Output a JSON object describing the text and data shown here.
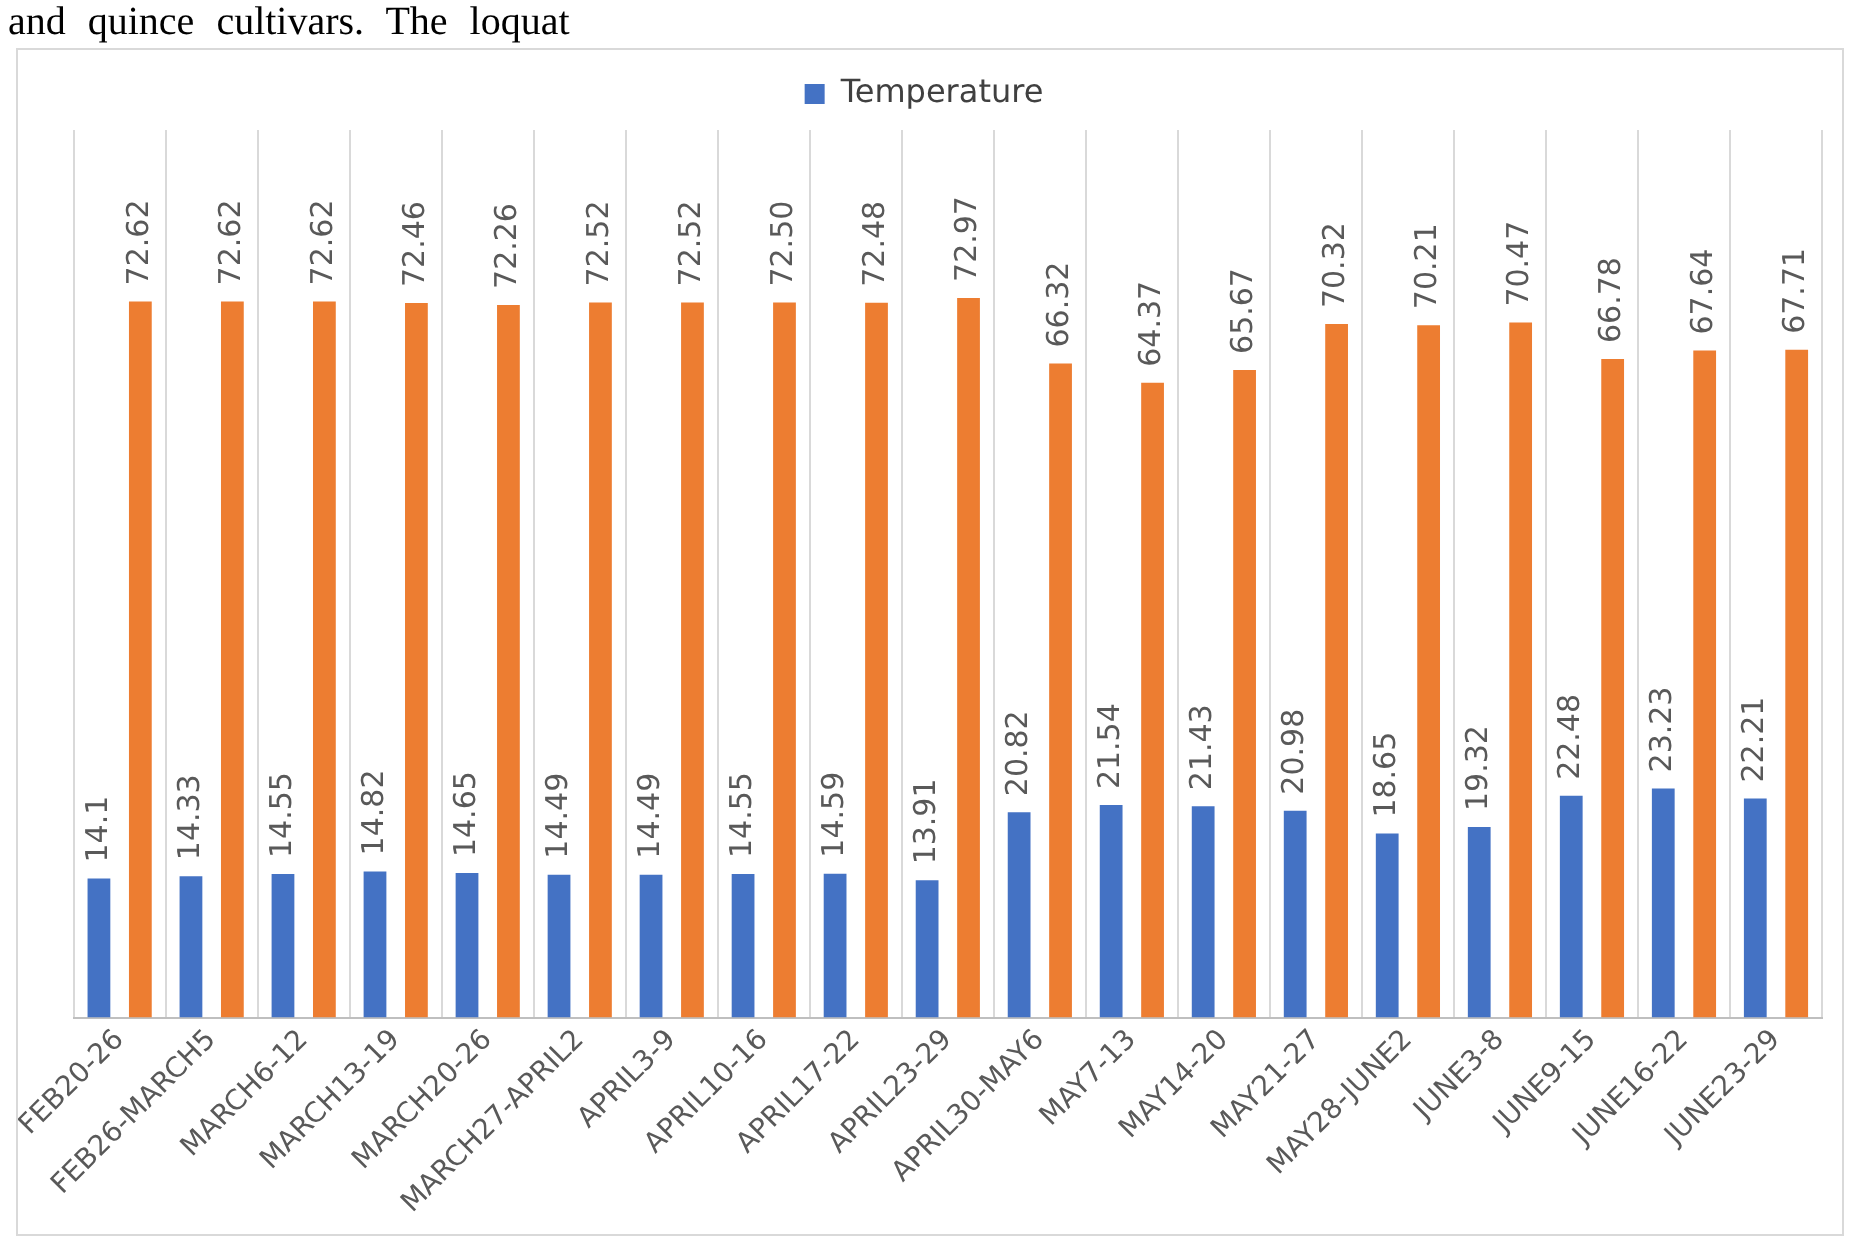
{
  "chart_data": {
    "type": "bar",
    "annotations": [
      "and quince cultivars. The loquat"
    ],
    "categories": [
      "FEB20-26",
      "FEB26-MARCH5",
      "MARCH6-12",
      "MARCH13-19",
      "MARCH20-26",
      "MARCH27-APRIL2",
      "APRIL3-9",
      "APRIL10-16",
      "APRIL17-22",
      "APRIL23-29",
      "APRIL30-MAY6",
      "MAY7-13",
      "MAY14-20",
      "MAY21-27",
      "MAY28-JUNE2",
      "JUNE3-8",
      "JUNE9-15",
      "JUNE16-22",
      "JUNE23-29"
    ],
    "series": [
      {
        "name": "Temperature",
        "color": "#4472c4",
        "values": [
          14.1,
          14.33,
          14.55,
          14.82,
          14.65,
          14.49,
          14.49,
          14.55,
          14.59,
          13.91,
          20.82,
          21.54,
          21.43,
          20.98,
          18.65,
          19.32,
          22.48,
          23.23,
          22.21
        ],
        "value_labels": [
          "14.1",
          "14.33",
          "14.55",
          "14.82",
          "14.65",
          "14.49",
          "14.49",
          "14.55",
          "14.59",
          "13.91",
          "20.82",
          "21.54",
          "21.43",
          "20.98",
          "18.65",
          "19.32",
          "22.48",
          "23.23",
          "22.21"
        ]
      },
      {
        "color": "#ed7d31",
        "values": [
          72.62,
          72.62,
          72.62,
          72.46,
          72.26,
          72.52,
          72.52,
          72.5,
          72.48,
          72.97,
          66.32,
          64.37,
          65.67,
          70.32,
          70.21,
          70.47,
          66.78,
          67.64,
          67.71
        ],
        "value_labels": [
          "72.62",
          "72.62",
          "72.62",
          "72.46",
          "72.26",
          "72.52",
          "72.52",
          "72.50",
          "72.48",
          "72.97",
          "66.32",
          "64.37",
          "65.67",
          "70.32",
          "70.21",
          "70.47",
          "66.78",
          "67.64",
          "67.71"
        ]
      }
    ],
    "grid": "x",
    "legend": "top"
  }
}
